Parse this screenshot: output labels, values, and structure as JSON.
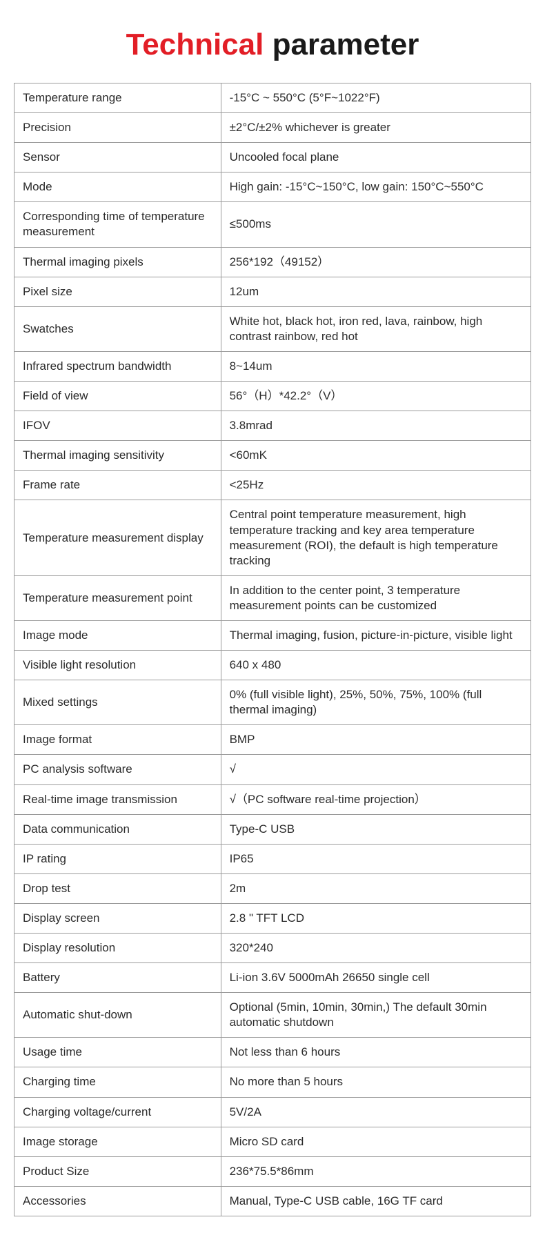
{
  "title": {
    "part1": "Technical",
    "part2": " parameter",
    "color_red": "#e21e26",
    "color_black": "#1a1a1a",
    "fontsize": 44
  },
  "table": {
    "border_color": "#9a9a9a",
    "text_color": "#2b2b2b",
    "label_width_pct": 40,
    "value_width_pct": 60,
    "cell_fontsize": 17,
    "rows": [
      {
        "label": "Temperature range",
        "value": "-15°C ~ 550°C (5°F~1022°F)"
      },
      {
        "label": "Precision",
        "value": "±2°C/±2% whichever is greater"
      },
      {
        "label": "Sensor",
        "value": "Uncooled focal plane"
      },
      {
        "label": "Mode",
        "value": "High gain: -15°C~150°C, low gain: 150°C~550°C"
      },
      {
        "label": "Corresponding time of temperature measurement",
        "value": "≤500ms"
      },
      {
        "label": "Thermal imaging pixels",
        "value": "256*192（49152）"
      },
      {
        "label": "Pixel size",
        "value": "12um"
      },
      {
        "label": "Swatches",
        "value": "White hot, black hot, iron red, lava, rainbow, high contrast rainbow, red hot"
      },
      {
        "label": "Infrared spectrum bandwidth",
        "value": "8~14um"
      },
      {
        "label": "Field of view",
        "value": "56°（H）*42.2°（V）"
      },
      {
        "label": "IFOV",
        "value": "3.8mrad"
      },
      {
        "label": "Thermal imaging sensitivity",
        "value": "<60mK"
      },
      {
        "label": "Frame rate",
        "value": "<25Hz"
      },
      {
        "label": "Temperature measurement display",
        "value": "Central point temperature measurement, high temperature tracking and key area temperature measurement (ROI), the default is high temperature tracking"
      },
      {
        "label": "Temperature measurement point",
        "value": "In addition to the center point, 3 temperature measurement points can be customized"
      },
      {
        "label": "Image mode",
        "value": "Thermal imaging, fusion, picture-in-picture, visible light"
      },
      {
        "label": "Visible light resolution",
        "value": "640 x 480"
      },
      {
        "label": "Mixed settings",
        "value": "0% (full visible light), 25%, 50%, 75%, 100% (full thermal imaging)"
      },
      {
        "label": "Image format",
        "value": "BMP"
      },
      {
        "label": "PC analysis software",
        "value": "√"
      },
      {
        "label": "Real-time image transmission",
        "value": "√（PC software real-time projection）"
      },
      {
        "label": "Data communication",
        "value": "Type-C USB"
      },
      {
        "label": "IP rating",
        "value": "IP65"
      },
      {
        "label": "Drop test",
        "value": "2m"
      },
      {
        "label": "Display screen",
        "value": "2.8 \" TFT LCD"
      },
      {
        "label": "Display resolution",
        "value": "320*240"
      },
      {
        "label": "Battery",
        "value": "Li-ion 3.6V 5000mAh 26650 single cell"
      },
      {
        "label": "Automatic shut-down",
        "value": "Optional (5min, 10min, 30min,) The default 30min automatic shutdown"
      },
      {
        "label": "Usage time",
        "value": "Not less than 6 hours"
      },
      {
        "label": "Charging time",
        "value": "No more than 5 hours"
      },
      {
        "label": "Charging voltage/current",
        "value": "5V/2A"
      },
      {
        "label": "Image storage",
        "value": "Micro SD card"
      },
      {
        "label": "Product Size",
        "value": "236*75.5*86mm"
      },
      {
        "label": "Accessories",
        "value": "Manual, Type-C USB cable, 16G TF card"
      }
    ]
  }
}
